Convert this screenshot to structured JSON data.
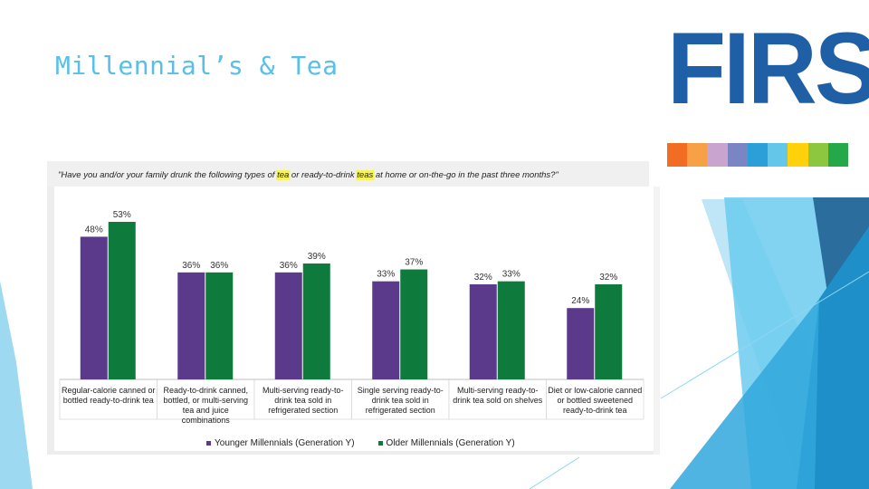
{
  "title": "Millennial’s & Tea",
  "logo": {
    "text": "FIRSt",
    "color": "#1F5FA6",
    "strip_colors": [
      "#F26C21",
      "#F7A046",
      "#C9A4CF",
      "#7A86C3",
      "#2B9FD8",
      "#64C7EA",
      "#FFD10A",
      "#8DC63F",
      "#25A84A"
    ]
  },
  "chart_data": {
    "type": "bar",
    "question": "\"Have you and/or your family drunk the following types of tea or ready-to-drink teas at home or on-the-go in the past three months?\"",
    "highlight_terms": [
      "tea",
      "teas"
    ],
    "categories": [
      [
        "Regular-calorie canned or",
        "bottled ready-to-drink tea"
      ],
      [
        "Ready-to-drink canned,",
        "bottled, or multi-serving",
        "tea and juice",
        "combinations"
      ],
      [
        "Multi-serving ready-to-",
        "drink tea sold in",
        "refrigerated section"
      ],
      [
        "Single serving ready-to-",
        "drink tea sold in",
        "refrigerated section"
      ],
      [
        "Multi-serving ready-to-",
        "drink tea sold on shelves"
      ],
      [
        "Diet or low-calorie canned",
        "or bottled sweetened",
        "ready-to-drink tea"
      ]
    ],
    "series": [
      {
        "name": "Younger Millennials (Generation Y)",
        "color": "#5B3A8C",
        "values": [
          48,
          36,
          36,
          33,
          32,
          24
        ]
      },
      {
        "name": "Older Millennials (Generation Y)",
        "color": "#0E7A3C",
        "values": [
          53,
          36,
          39,
          37,
          33,
          32
        ]
      }
    ],
    "value_suffix": "%",
    "ylim": [
      0,
      60
    ],
    "grid": false,
    "legend_position": "bottom"
  }
}
